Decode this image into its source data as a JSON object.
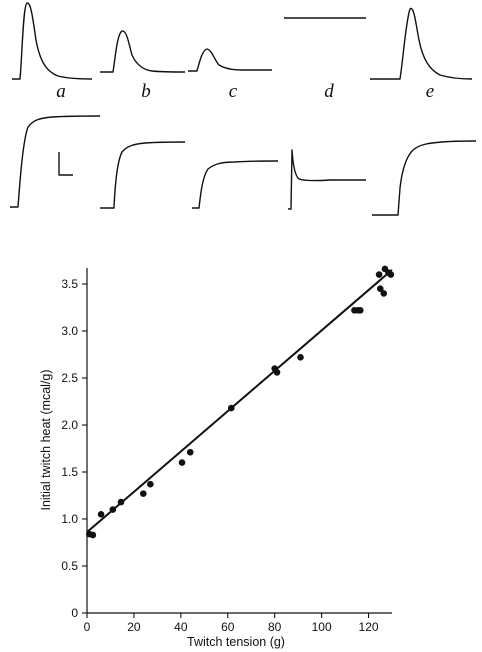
{
  "panels": {
    "labels": [
      "a",
      "b",
      "c",
      "d",
      "e"
    ]
  },
  "chart_data": {
    "type": "scatter",
    "xlabel": "Twitch tension (g)",
    "ylabel": "Initial twitch heat (mcal/g)",
    "xlim": [
      0,
      130
    ],
    "ylim": [
      0,
      3.5
    ],
    "x_ticks": [
      0,
      20,
      40,
      60,
      80,
      100,
      120
    ],
    "x_tick_labels": [
      "0",
      "20",
      "40",
      "60",
      "80",
      "100",
      "120"
    ],
    "y_ticks": [
      0,
      0.5,
      1.0,
      1.5,
      2.0,
      2.5,
      3.0,
      3.5
    ],
    "y_tick_labels": [
      "0",
      "0.5",
      "1.0",
      "1.5",
      "2.0",
      "2.5",
      "3.0",
      "3.5"
    ],
    "grid": false,
    "series": [
      {
        "points": [
          [
            1,
            0.84
          ],
          [
            2.5,
            0.83
          ],
          [
            6,
            1.05
          ],
          [
            11,
            1.1
          ],
          [
            14.5,
            1.18
          ],
          [
            24,
            1.27
          ],
          [
            27,
            1.37
          ],
          [
            40.5,
            1.6
          ],
          [
            44,
            1.71
          ],
          [
            61.5,
            2.18
          ],
          [
            80,
            2.6
          ],
          [
            81,
            2.56
          ],
          [
            91,
            2.72
          ],
          [
            114,
            3.22
          ],
          [
            115.5,
            3.22
          ],
          [
            116.5,
            3.22
          ],
          [
            124.5,
            3.6
          ],
          [
            125,
            3.45
          ],
          [
            126.5,
            3.4
          ],
          [
            127,
            3.66
          ],
          [
            128.5,
            3.62
          ],
          [
            129.5,
            3.6
          ]
        ]
      }
    ],
    "fit_line": {
      "x": [
        0,
        130
      ],
      "y": [
        0.86,
        3.65
      ]
    }
  }
}
